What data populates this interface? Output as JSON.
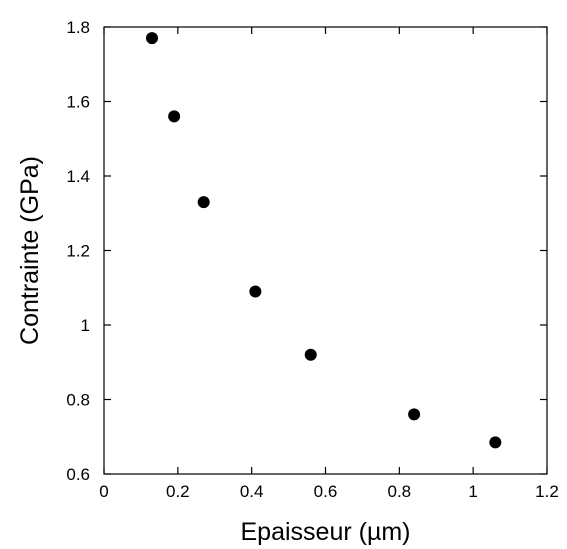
{
  "chart_data": {
    "type": "scatter",
    "title": "",
    "xlabel": "Epaisseur (µm)",
    "ylabel": "Contrainte (GPa)",
    "xlim": [
      0,
      1.2
    ],
    "ylim": [
      0.6,
      1.8
    ],
    "xticks": [
      0,
      0.2,
      0.4,
      0.6,
      0.8,
      1,
      1.2
    ],
    "xtick_labels": [
      "0",
      "0.2",
      "0.4",
      "0.6",
      "0.8",
      "1",
      "1.2"
    ],
    "yticks": [
      0.6,
      0.8,
      1.0,
      1.2,
      1.4,
      1.6,
      1.8
    ],
    "ytick_labels": [
      "0.6",
      "0.8",
      "1",
      "1.2",
      "1.4",
      "1.6",
      "1.8"
    ],
    "grid": false,
    "legend": "none",
    "marker_color": "#000000",
    "series": [
      {
        "x": [
          0.13,
          0.19,
          0.27,
          0.41,
          0.56,
          0.84,
          1.06
        ],
        "y": [
          1.77,
          1.56,
          1.33,
          1.09,
          0.92,
          0.76,
          0.685
        ]
      }
    ]
  }
}
